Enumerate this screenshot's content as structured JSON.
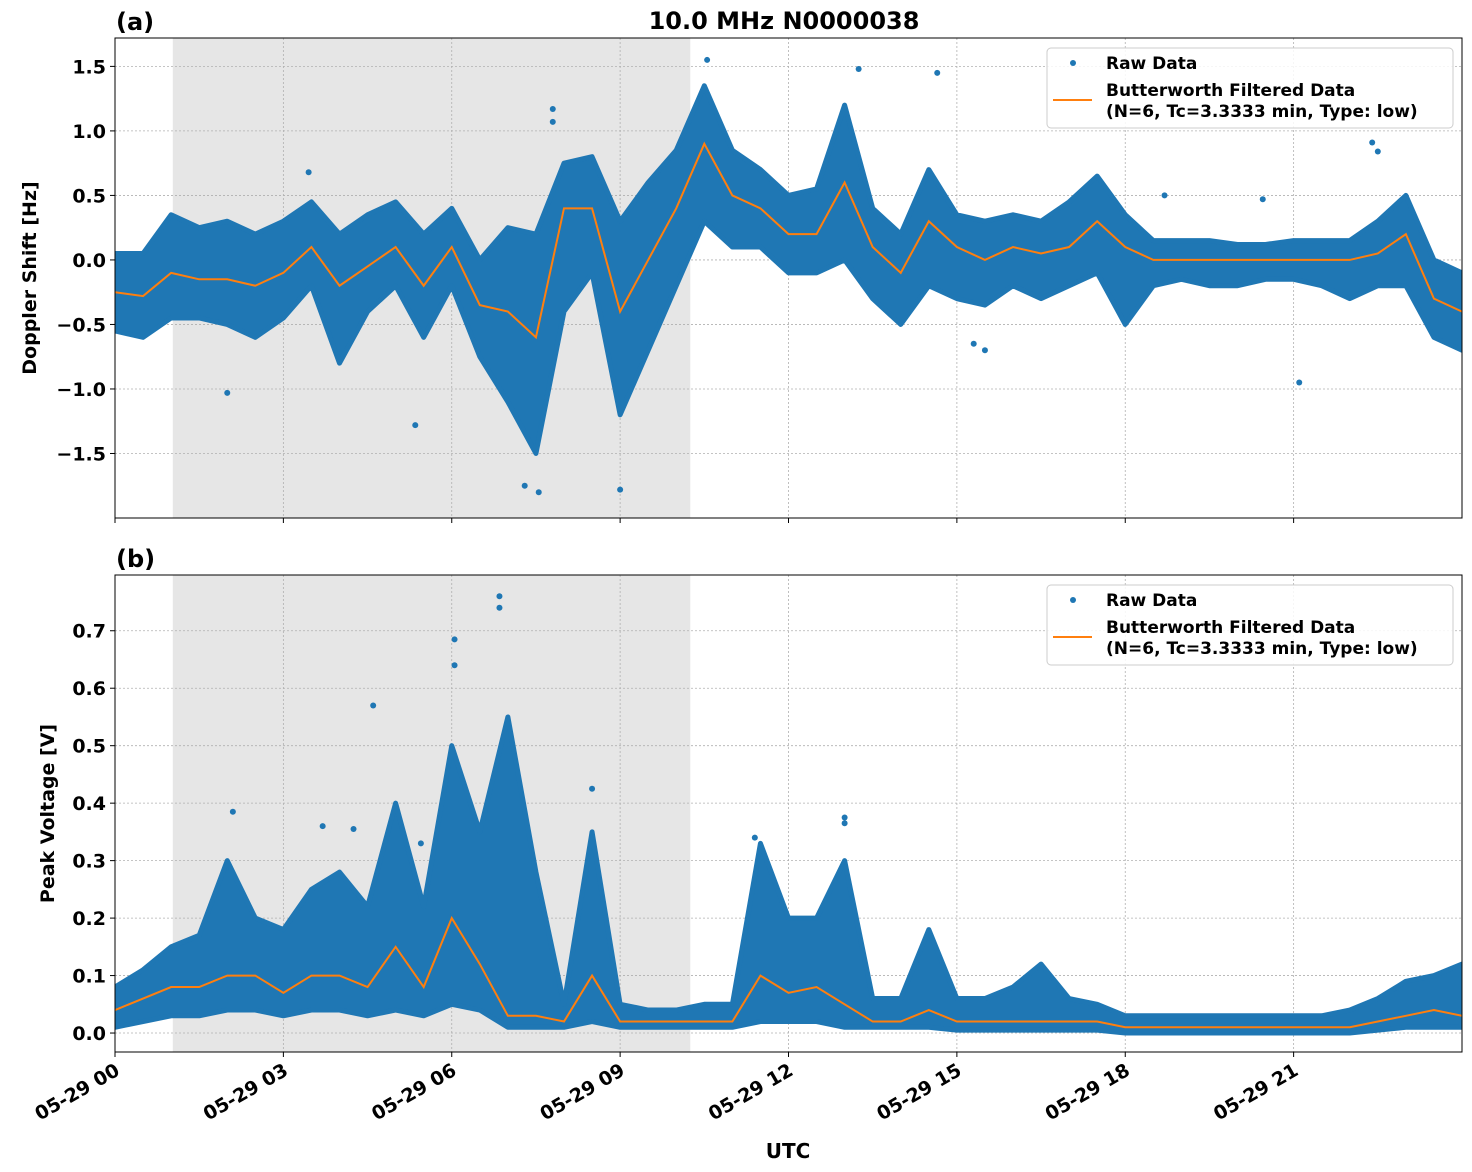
{
  "figure_title": "10.0 MHz N0000038",
  "xlabel": "UTC",
  "x_tick_labels": [
    "05-29 00",
    "05-29 03",
    "05-29 06",
    "05-29 09",
    "05-29 12",
    "05-29 15",
    "05-29 18",
    "05-29 21"
  ],
  "colors": {
    "raw": "#1f77b4",
    "filtered": "#ff7f0e",
    "shade": "#e6e6e6",
    "grid": "#b0b0b0"
  },
  "chart_data": [
    {
      "type": "scatter",
      "panel_label": "(a)",
      "ylabel": "Doppler Shift [Hz]",
      "x_unit": "hours after 05-29 00 UTC",
      "xlim": [
        0,
        24
      ],
      "ylim": [
        -2.0,
        1.72
      ],
      "y_ticks": [
        -1.5,
        -1.0,
        -0.5,
        0.0,
        0.5,
        1.0,
        1.5
      ],
      "y_tick_labels": [
        "−1.5",
        "−1.0",
        "−0.5",
        "0.0",
        "0.5",
        "1.0",
        "1.5"
      ],
      "grid": true,
      "shaded_interval": [
        1.03,
        10.25
      ],
      "legend": {
        "position": "top-right",
        "entries": [
          "Raw Data",
          "Butterworth Filtered Data",
          "(N=6, Tc=3.3333 min, Type: low)"
        ]
      },
      "x": [
        0,
        0.5,
        1,
        1.5,
        2,
        2.5,
        3,
        3.5,
        4,
        4.5,
        5,
        5.5,
        6,
        6.5,
        7,
        7.5,
        8,
        8.5,
        9,
        9.5,
        10,
        10.5,
        11,
        11.5,
        12,
        12.5,
        13,
        13.5,
        14,
        14.5,
        15,
        15.5,
        16,
        16.5,
        17,
        17.5,
        18,
        18.5,
        19,
        19.5,
        20,
        20.5,
        21,
        21.5,
        22,
        22.5,
        23,
        23.5,
        24
      ],
      "series": [
        {
          "name": "Butterworth Filtered Data",
          "values": [
            -0.25,
            -0.28,
            -0.1,
            -0.15,
            -0.15,
            -0.2,
            -0.1,
            0.1,
            -0.2,
            -0.05,
            0.1,
            -0.2,
            0.1,
            -0.35,
            -0.4,
            -0.6,
            0.4,
            0.4,
            -0.4,
            0.0,
            0.4,
            0.9,
            0.5,
            0.4,
            0.2,
            0.2,
            0.6,
            0.1,
            -0.1,
            0.3,
            0.1,
            0.0,
            0.1,
            0.05,
            0.1,
            0.3,
            0.1,
            0.0,
            0.0,
            0.0,
            0.0,
            0.0,
            0.0,
            0.0,
            0.0,
            0.05,
            0.2,
            -0.3,
            -0.4
          ]
        },
        {
          "name": "Raw Data",
          "upper": [
            0.05,
            0.05,
            0.35,
            0.25,
            0.3,
            0.2,
            0.3,
            0.45,
            0.2,
            0.35,
            0.45,
            0.2,
            0.4,
            0.0,
            0.25,
            0.2,
            0.75,
            0.8,
            0.3,
            0.6,
            0.85,
            1.35,
            0.85,
            0.7,
            0.5,
            0.55,
            1.2,
            0.4,
            0.2,
            0.7,
            0.35,
            0.3,
            0.35,
            0.3,
            0.45,
            0.65,
            0.35,
            0.15,
            0.15,
            0.15,
            0.12,
            0.12,
            0.15,
            0.15,
            0.15,
            0.3,
            0.5,
            0.0,
            -0.1
          ],
          "lower": [
            -0.55,
            -0.6,
            -0.45,
            -0.45,
            -0.5,
            -0.6,
            -0.45,
            -0.2,
            -0.8,
            -0.4,
            -0.2,
            -0.6,
            -0.2,
            -0.75,
            -1.1,
            -1.5,
            -0.4,
            -0.1,
            -1.2,
            -0.7,
            -0.2,
            0.3,
            0.1,
            0.1,
            -0.1,
            -0.1,
            0.0,
            -0.3,
            -0.5,
            -0.2,
            -0.3,
            -0.35,
            -0.2,
            -0.3,
            -0.2,
            -0.1,
            -0.5,
            -0.2,
            -0.15,
            -0.2,
            -0.2,
            -0.15,
            -0.15,
            -0.2,
            -0.3,
            -0.2,
            -0.2,
            -0.6,
            -0.7
          ],
          "outliers": [
            [
              2.0,
              -1.03
            ],
            [
              3.45,
              0.68
            ],
            [
              5.35,
              -1.28
            ],
            [
              7.8,
              1.17
            ],
            [
              7.8,
              1.07
            ],
            [
              7.3,
              -1.75
            ],
            [
              7.55,
              -1.8
            ],
            [
              9.0,
              -1.78
            ],
            [
              10.55,
              1.55
            ],
            [
              13.25,
              1.48
            ],
            [
              14.65,
              1.45
            ],
            [
              18.7,
              0.5
            ],
            [
              20.45,
              0.47
            ],
            [
              22.4,
              0.91
            ],
            [
              22.5,
              0.84
            ],
            [
              21.1,
              -0.95
            ],
            [
              15.5,
              -0.7
            ],
            [
              15.3,
              -0.65
            ]
          ]
        }
      ]
    },
    {
      "type": "scatter",
      "panel_label": "(b)",
      "ylabel": "Peak Voltage [V]",
      "x_unit": "hours after 05-29 00 UTC",
      "xlim": [
        0,
        24
      ],
      "ylim": [
        -0.033,
        0.797
      ],
      "y_ticks": [
        0.0,
        0.1,
        0.2,
        0.3,
        0.4,
        0.5,
        0.6,
        0.7
      ],
      "y_tick_labels": [
        "0.0",
        "0.1",
        "0.2",
        "0.3",
        "0.4",
        "0.5",
        "0.6",
        "0.7"
      ],
      "grid": true,
      "shaded_interval": [
        1.03,
        10.25
      ],
      "legend": {
        "position": "top-right",
        "entries": [
          "Raw Data",
          "Butterworth Filtered Data",
          "(N=6, Tc=3.3333 min, Type: low)"
        ]
      },
      "x": [
        0,
        0.5,
        1,
        1.5,
        2,
        2.5,
        3,
        3.5,
        4,
        4.5,
        5,
        5.5,
        6,
        6.5,
        7,
        7.5,
        8,
        8.5,
        9,
        9.5,
        10,
        10.5,
        11,
        11.5,
        12,
        12.5,
        13,
        13.5,
        14,
        14.5,
        15,
        15.5,
        16,
        16.5,
        17,
        17.5,
        18,
        18.5,
        19,
        19.5,
        20,
        20.5,
        21,
        21.5,
        22,
        22.5,
        23,
        23.5,
        24
      ],
      "series": [
        {
          "name": "Butterworth Filtered Data",
          "values": [
            0.04,
            0.06,
            0.08,
            0.08,
            0.1,
            0.1,
            0.07,
            0.1,
            0.1,
            0.08,
            0.15,
            0.08,
            0.2,
            0.12,
            0.03,
            0.03,
            0.02,
            0.1,
            0.02,
            0.02,
            0.02,
            0.02,
            0.02,
            0.1,
            0.07,
            0.08,
            0.05,
            0.02,
            0.02,
            0.04,
            0.02,
            0.02,
            0.02,
            0.02,
            0.02,
            0.02,
            0.01,
            0.01,
            0.01,
            0.01,
            0.01,
            0.01,
            0.01,
            0.01,
            0.01,
            0.02,
            0.03,
            0.04,
            0.03
          ]
        },
        {
          "name": "Raw Data",
          "upper": [
            0.08,
            0.11,
            0.15,
            0.17,
            0.3,
            0.2,
            0.18,
            0.25,
            0.28,
            0.22,
            0.4,
            0.22,
            0.5,
            0.35,
            0.55,
            0.28,
            0.05,
            0.35,
            0.05,
            0.04,
            0.04,
            0.05,
            0.05,
            0.33,
            0.2,
            0.2,
            0.3,
            0.06,
            0.06,
            0.18,
            0.06,
            0.06,
            0.08,
            0.12,
            0.06,
            0.05,
            0.03,
            0.03,
            0.03,
            0.03,
            0.03,
            0.03,
            0.03,
            0.03,
            0.04,
            0.06,
            0.09,
            0.1,
            0.12
          ],
          "lower": [
            0.01,
            0.02,
            0.03,
            0.03,
            0.04,
            0.04,
            0.03,
            0.04,
            0.04,
            0.03,
            0.04,
            0.03,
            0.05,
            0.04,
            0.01,
            0.01,
            0.01,
            0.02,
            0.01,
            0.01,
            0.01,
            0.01,
            0.01,
            0.02,
            0.02,
            0.02,
            0.01,
            0.01,
            0.01,
            0.01,
            0.005,
            0.005,
            0.005,
            0.005,
            0.005,
            0.005,
            0.0,
            0.0,
            0.0,
            0.0,
            0.0,
            0.0,
            0.0,
            0.0,
            0.0,
            0.005,
            0.01,
            0.01,
            0.01
          ],
          "outliers": [
            [
              2.1,
              0.385
            ],
            [
              4.6,
              0.57
            ],
            [
              6.05,
              0.685
            ],
            [
              6.05,
              0.64
            ],
            [
              6.85,
              0.76
            ],
            [
              6.85,
              0.74
            ],
            [
              8.5,
              0.425
            ],
            [
              11.4,
              0.34
            ],
            [
              13.0,
              0.375
            ],
            [
              13.0,
              0.365
            ],
            [
              3.7,
              0.36
            ],
            [
              4.25,
              0.355
            ],
            [
              5.45,
              0.33
            ]
          ]
        }
      ]
    }
  ]
}
